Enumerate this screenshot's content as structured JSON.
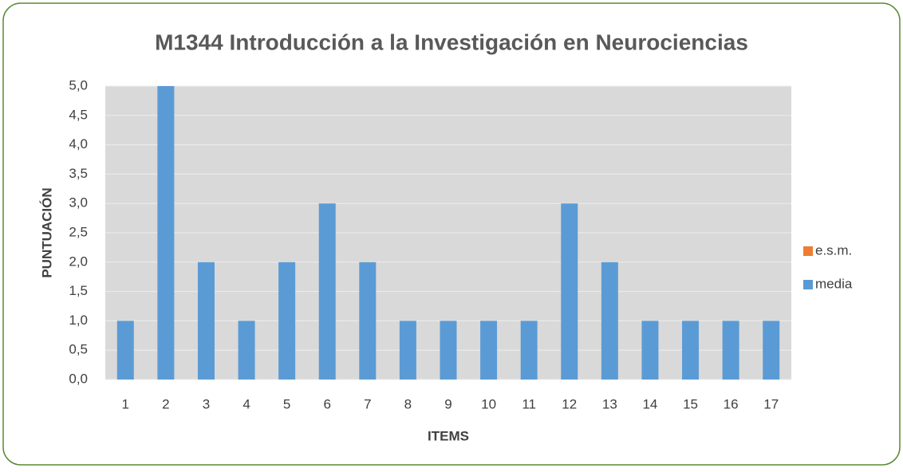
{
  "chart_data": {
    "type": "bar",
    "stacked": true,
    "title": "M1344 Introducción a la Investigación en Neurociencias",
    "xlabel": "ITEMS",
    "ylabel": "PUNTUACIÓN",
    "categories": [
      "1",
      "2",
      "3",
      "4",
      "5",
      "6",
      "7",
      "8",
      "9",
      "10",
      "11",
      "12",
      "13",
      "14",
      "15",
      "16",
      "17"
    ],
    "series": [
      {
        "name": "media",
        "color": "#5b9bd5",
        "values": [
          1,
          5,
          2,
          1,
          2,
          3,
          2,
          1,
          1,
          1,
          1,
          3,
          2,
          1,
          1,
          1,
          1
        ]
      },
      {
        "name": "e.s.m.",
        "color": "#ed7d31",
        "values": [
          0,
          0,
          0,
          0,
          0,
          0,
          0,
          0,
          0,
          0,
          0,
          0,
          0,
          0,
          0,
          0,
          0
        ]
      }
    ],
    "ylim": [
      0,
      5
    ],
    "yticks": [
      {
        "value": 0,
        "label": "0,0"
      },
      {
        "value": 0.5,
        "label": "0,5"
      },
      {
        "value": 1,
        "label": "1,0"
      },
      {
        "value": 1.5,
        "label": "1,5"
      },
      {
        "value": 2,
        "label": "2,0"
      },
      {
        "value": 2.5,
        "label": "2,5"
      },
      {
        "value": 3,
        "label": "3,0"
      },
      {
        "value": 3.5,
        "label": "3,5"
      },
      {
        "value": 4,
        "label": "4,0"
      },
      {
        "value": 4.5,
        "label": "4,5"
      },
      {
        "value": 5,
        "label": "5,0"
      }
    ],
    "grid": true,
    "legend": "right"
  }
}
